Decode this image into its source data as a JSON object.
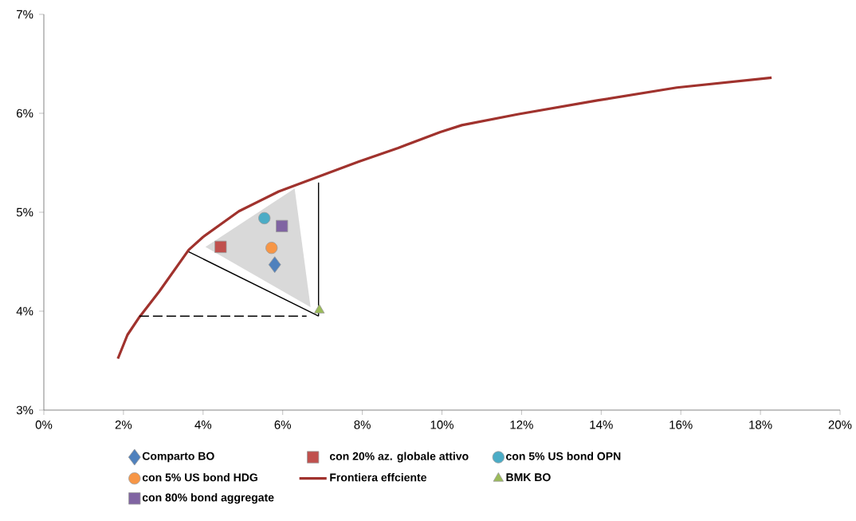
{
  "chart_data": {
    "type": "scatter",
    "xlim": [
      0,
      20
    ],
    "ylim": [
      3,
      7
    ],
    "xticks": [
      {
        "value": 0,
        "label": "0%"
      },
      {
        "value": 2,
        "label": "2%"
      },
      {
        "value": 4,
        "label": "4%"
      },
      {
        "value": 6,
        "label": "6%"
      },
      {
        "value": 8,
        "label": "8%"
      },
      {
        "value": 10,
        "label": "10%"
      },
      {
        "value": 12,
        "label": "12%"
      },
      {
        "value": 14,
        "label": "14%"
      },
      {
        "value": 16,
        "label": "16%"
      },
      {
        "value": 18,
        "label": "18%"
      },
      {
        "value": 20,
        "label": "20%"
      }
    ],
    "yticks": [
      {
        "value": 3,
        "label": "3%"
      },
      {
        "value": 4,
        "label": "4%"
      },
      {
        "value": 5,
        "label": "5%"
      },
      {
        "value": 6,
        "label": "6%"
      },
      {
        "value": 7,
        "label": "7%"
      }
    ],
    "legend": "bottom",
    "series": [
      {
        "type": "area",
        "color": "#d9d9d9",
        "x": [
          4.06,
          6.3,
          6.7
        ],
        "values": [
          4.65,
          5.24,
          4.04
        ]
      },
      {
        "type": "line",
        "color": "#000000",
        "line_style": "solid",
        "x": [
          3.64,
          6.9
        ],
        "values": [
          4.6,
          3.95
        ]
      },
      {
        "type": "line",
        "color": "#000000",
        "line_style": "solid",
        "x": [
          6.9,
          6.9
        ],
        "values": [
          3.95,
          5.3
        ]
      },
      {
        "type": "line",
        "color": "#000000",
        "line_style": "dashed",
        "x": [
          2.4,
          6.6
        ],
        "values": [
          3.95,
          3.95
        ]
      },
      {
        "name": "Comparto BO",
        "marker": "diamond",
        "color": "#4f81bd",
        "x": [
          5.8
        ],
        "values": [
          4.47
        ]
      },
      {
        "name": "con 20% az. globale attivo",
        "marker": "square",
        "color": "#c0504d",
        "x": [
          4.44
        ],
        "values": [
          4.65
        ]
      },
      {
        "name": "con 5% US bond OPN",
        "marker": "circle",
        "color": "#4bacc6",
        "x": [
          5.54
        ],
        "values": [
          4.94
        ]
      },
      {
        "name": "con 5% US bond HDG",
        "marker": "circle",
        "color": "#f79646",
        "x": [
          5.72
        ],
        "values": [
          4.64
        ]
      },
      {
        "name": "Frontiera effciente",
        "type": "line",
        "line_style": "solid",
        "color": "#a0322d",
        "x": [
          1.86,
          2.1,
          2.4,
          2.9,
          3.64,
          4.0,
          4.9,
          5.9,
          6.9,
          7.9,
          8.9,
          9.96,
          10.5,
          11.9,
          13.9,
          15.9,
          18.28
        ],
        "values": [
          3.52,
          3.76,
          3.94,
          4.2,
          4.62,
          4.75,
          5.01,
          5.21,
          5.36,
          5.51,
          5.65,
          5.81,
          5.88,
          5.99,
          6.13,
          6.26,
          6.36
        ]
      },
      {
        "name": "BMK BO",
        "marker": "triangle",
        "color": "#9bbb59",
        "x": [
          6.92
        ],
        "values": [
          4.01
        ]
      },
      {
        "name": "con 80% bond aggregate",
        "marker": "square",
        "color": "#8064a2",
        "x": [
          5.98
        ],
        "values": [
          4.86
        ]
      }
    ]
  }
}
